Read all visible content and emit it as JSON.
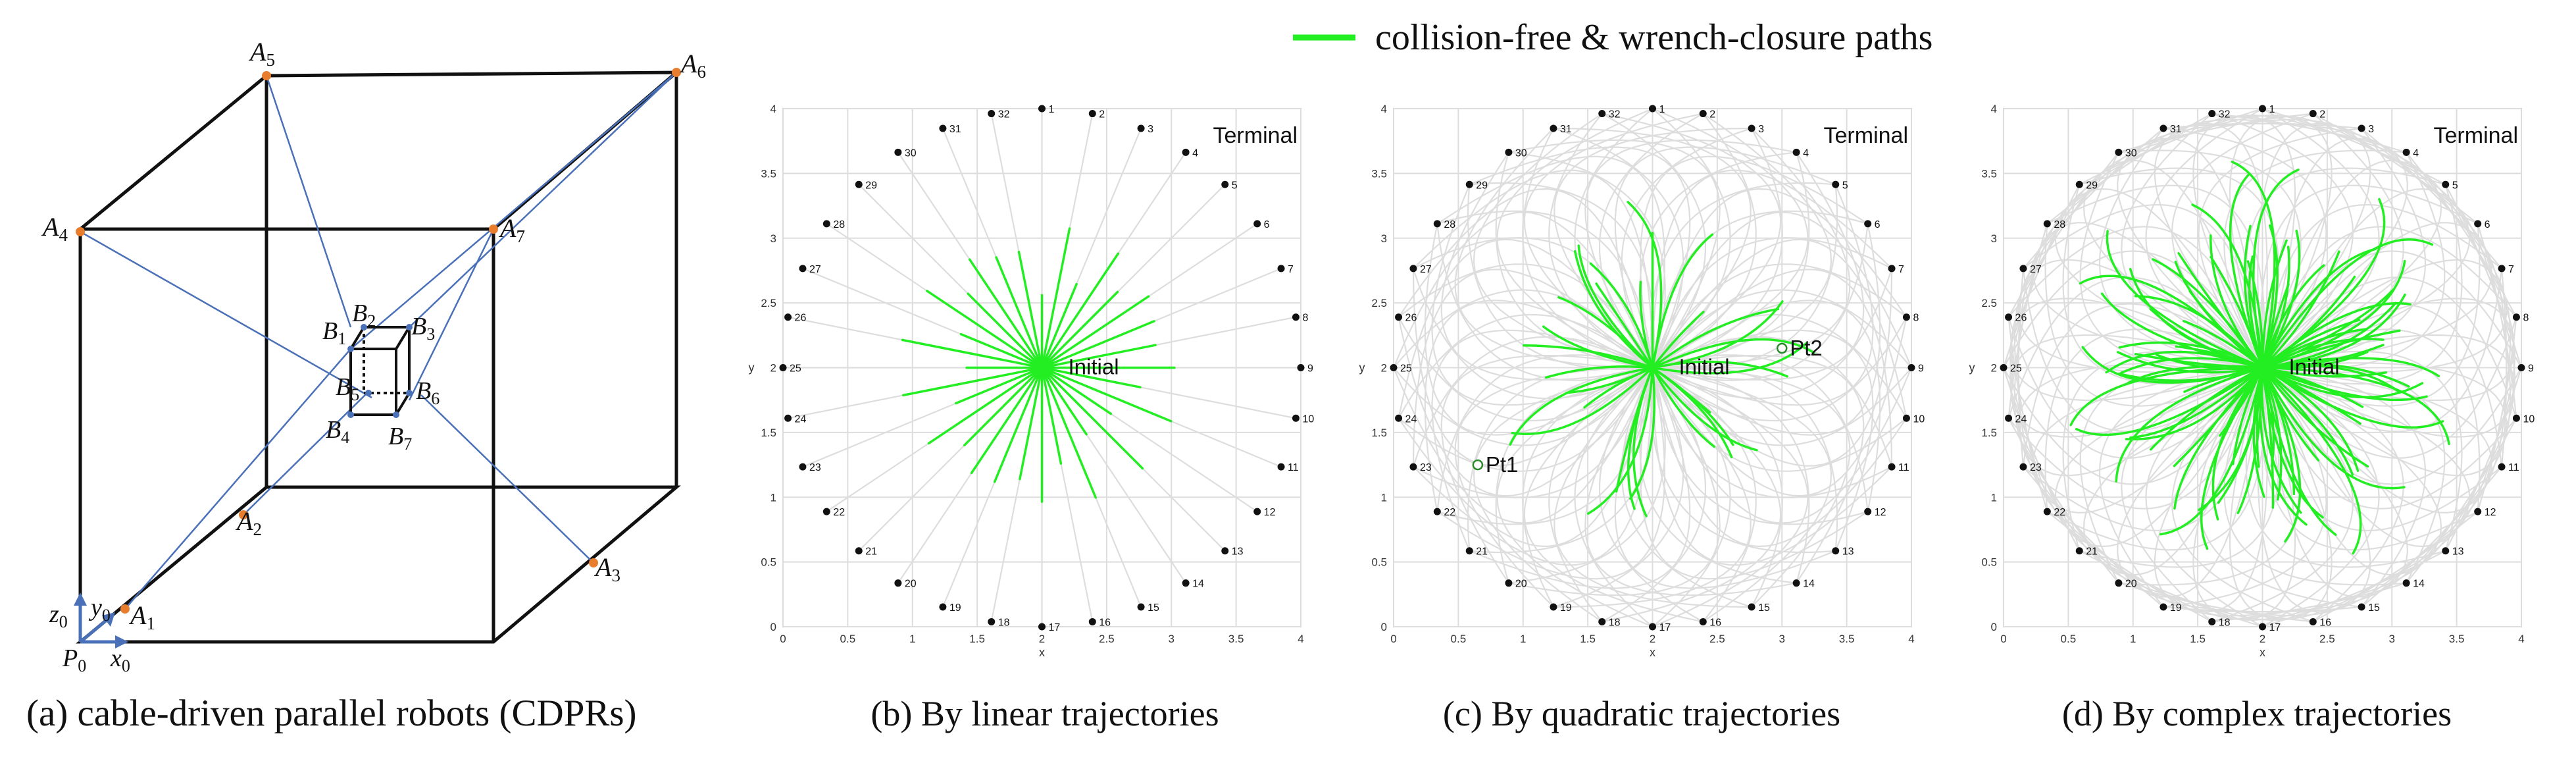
{
  "legend": {
    "label": "collision-free & wrench-closure paths",
    "color": "#22ee22"
  },
  "colors": {
    "green": "#22ee22",
    "grid": "#dddddd",
    "cable": "#4a70b8",
    "frame": "#111111",
    "anchor": "#e87d2e",
    "axis": "#4a70b8"
  },
  "panel_a": {
    "caption": "(a) cable-driven parallel robots (CDPRs)",
    "frame_labels": {
      "A1": {
        "base": "A",
        "sub": "1"
      },
      "A2": {
        "base": "A",
        "sub": "2"
      },
      "A3": {
        "base": "A",
        "sub": "3"
      },
      "A4": {
        "base": "A",
        "sub": "4"
      },
      "A5": {
        "base": "A",
        "sub": "5"
      },
      "A6": {
        "base": "A",
        "sub": "6"
      },
      "A7": {
        "base": "A",
        "sub": "7"
      }
    },
    "platform_labels": {
      "B1": {
        "base": "B",
        "sub": "1"
      },
      "B2": {
        "base": "B",
        "sub": "2"
      },
      "B3": {
        "base": "B",
        "sub": "3"
      },
      "B4": {
        "base": "B",
        "sub": "4"
      },
      "B5": {
        "base": "B",
        "sub": "5"
      },
      "B6": {
        "base": "B",
        "sub": "6"
      },
      "B7": {
        "base": "B",
        "sub": "7"
      }
    },
    "axes": {
      "x": {
        "base": "x",
        "sub": "0"
      },
      "y": {
        "base": "y",
        "sub": "0"
      },
      "z": {
        "base": "z",
        "sub": "0"
      },
      "origin": {
        "base": "P",
        "sub": "0"
      }
    }
  },
  "chart_data": [
    {
      "type": "scatter",
      "panel": "b",
      "caption": "(b) By linear trajectories",
      "trajectory": "linear",
      "xlabel": "x",
      "ylabel": "y",
      "xlim": [
        0,
        4
      ],
      "ylim": [
        0,
        4
      ],
      "xticks": [
        "0",
        "0.5",
        "1",
        "1.5",
        "2",
        "2.5",
        "3",
        "3.5",
        "4"
      ],
      "yticks": [
        "0",
        "0.5",
        "1",
        "1.5",
        "2",
        "2.5",
        "3",
        "3.5",
        "4"
      ],
      "grid": true,
      "initial": {
        "label": "Initial",
        "x": 2,
        "y": 2
      },
      "terminal_label": "Terminal",
      "targets": {
        "labels": [
          "1",
          "2",
          "3",
          "4",
          "5",
          "6",
          "7",
          "8",
          "9",
          "10",
          "11",
          "12",
          "13",
          "14",
          "15",
          "16",
          "17",
          "18",
          "19",
          "20",
          "21",
          "22",
          "23",
          "24",
          "25",
          "26",
          "27",
          "28",
          "29",
          "30",
          "31",
          "32"
        ],
        "radius": 2,
        "center": [
          2,
          2
        ]
      },
      "points": []
    },
    {
      "type": "scatter",
      "panel": "c",
      "caption": "(c) By quadratic trajectories",
      "trajectory": "quadratic",
      "xlabel": "x",
      "ylabel": "y",
      "xlim": [
        0,
        4
      ],
      "ylim": [
        0,
        4
      ],
      "xticks": [
        "0",
        "0.5",
        "1",
        "1.5",
        "2",
        "2.5",
        "3",
        "3.5",
        "4"
      ],
      "yticks": [
        "0",
        "0.5",
        "1",
        "1.5",
        "2",
        "2.5",
        "3",
        "3.5",
        "4"
      ],
      "grid": true,
      "initial": {
        "label": "Initial",
        "x": 2,
        "y": 2
      },
      "terminal_label": "Terminal",
      "targets": {
        "labels": [
          "1",
          "2",
          "3",
          "4",
          "5",
          "6",
          "7",
          "8",
          "9",
          "10",
          "11",
          "12",
          "13",
          "14",
          "15",
          "16",
          "17",
          "18",
          "19",
          "20",
          "21",
          "22",
          "23",
          "24",
          "25",
          "26",
          "27",
          "28",
          "29",
          "30",
          "31",
          "32"
        ],
        "radius": 2,
        "center": [
          2,
          2
        ]
      },
      "points": [
        {
          "label": "Pt1",
          "x": 0.65,
          "y": 1.25
        },
        {
          "label": "Pt2",
          "x": 3.0,
          "y": 2.15
        }
      ]
    },
    {
      "type": "scatter",
      "panel": "d",
      "caption": "(d) By complex trajectories",
      "trajectory": "complex",
      "xlabel": "x",
      "ylabel": "y",
      "xlim": [
        0,
        4
      ],
      "ylim": [
        0,
        4
      ],
      "xticks": [
        "0",
        "0.5",
        "1",
        "1.5",
        "2",
        "2.5",
        "3",
        "3.5",
        "4"
      ],
      "yticks": [
        "0",
        "0.5",
        "1",
        "1.5",
        "2",
        "2.5",
        "3",
        "3.5",
        "4"
      ],
      "grid": true,
      "initial": {
        "label": "Initial",
        "x": 2,
        "y": 2
      },
      "terminal_label": "Terminal",
      "targets": {
        "labels": [
          "1",
          "2",
          "3",
          "4",
          "5",
          "6",
          "7",
          "8",
          "9",
          "10",
          "11",
          "12",
          "13",
          "14",
          "15",
          "16",
          "17",
          "18",
          "19",
          "20",
          "21",
          "22",
          "23",
          "24",
          "25",
          "26",
          "27",
          "28",
          "29",
          "30",
          "31",
          "32"
        ],
        "radius": 2,
        "center": [
          2,
          2
        ]
      },
      "points": []
    }
  ]
}
